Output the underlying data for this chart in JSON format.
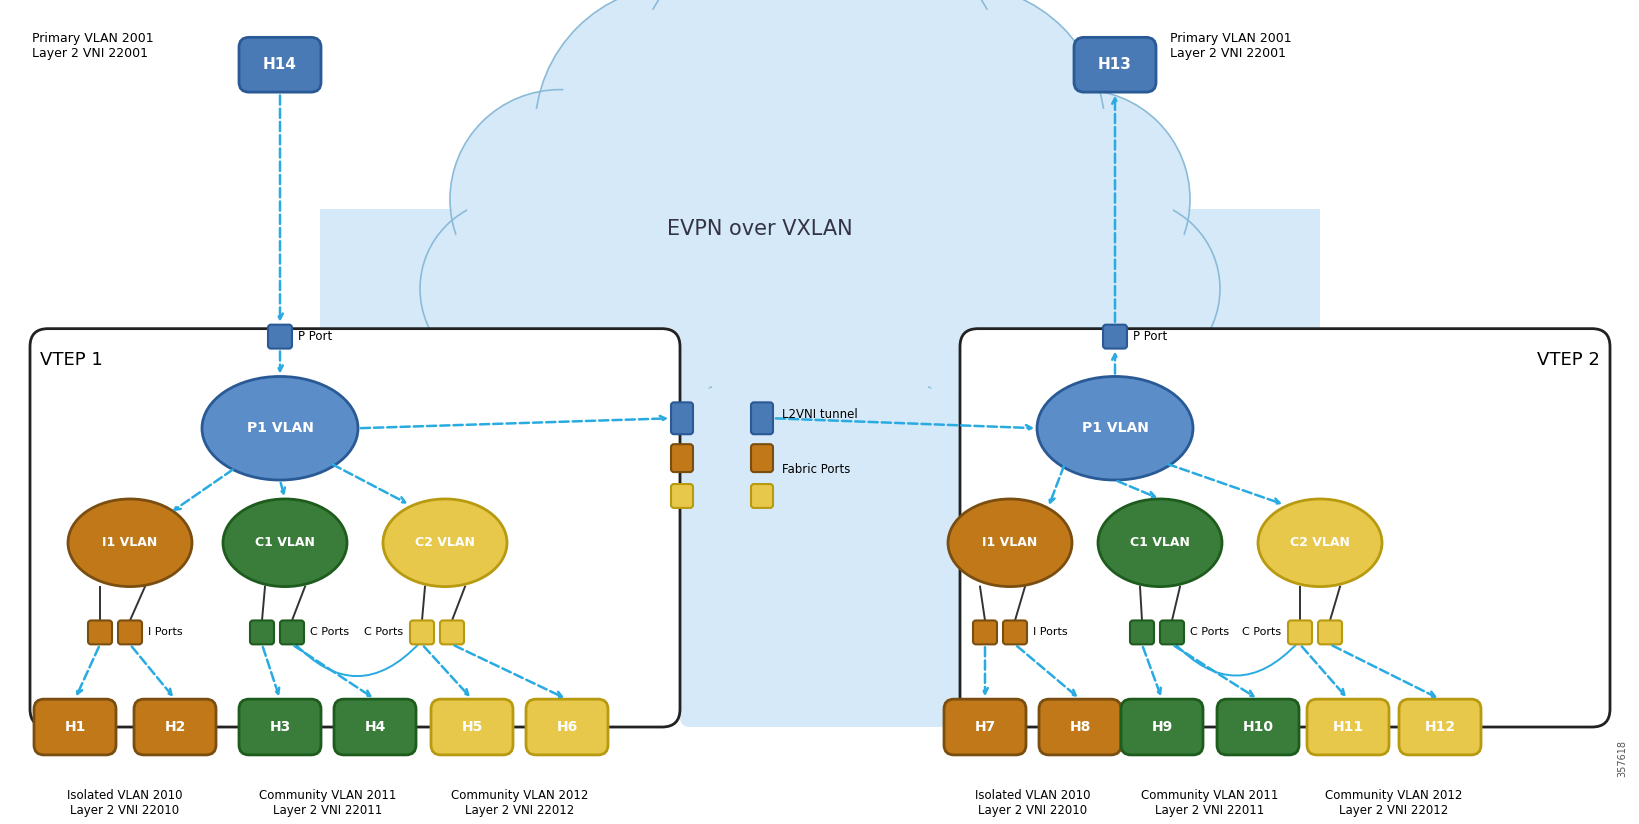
{
  "bg_color": "#ffffff",
  "cloud_color": "#d6e9f8",
  "cloud_edge_color": "#8bbbd8",
  "vtep_box_edge": "#222222",
  "p_vlan_color": "#5b8dc8",
  "p_vlan_edge": "#2a5a95",
  "i_vlan_color": "#c07818",
  "i_vlan_edge": "#7a4e10",
  "c1_vlan_color": "#3a7d3a",
  "c1_vlan_edge": "#1e5c1e",
  "c2_vlan_color": "#e8c84a",
  "c2_vlan_edge": "#b89a10",
  "host_blue_color": "#4a7ab5",
  "host_blue_edge": "#2a5a95",
  "host_orange_color": "#c07818",
  "host_orange_edge": "#7a4e10",
  "host_green_color": "#3a7d3a",
  "host_green_edge": "#1e5c1e",
  "host_yellow_color": "#e8c84a",
  "host_yellow_edge": "#b89a10",
  "port_blue_color": "#4a7ab5",
  "port_blue_edge": "#2a5a95",
  "port_orange_color": "#c07818",
  "port_orange_edge": "#7a4e10",
  "port_green_color": "#3a7d3a",
  "port_green_edge": "#1e5c1e",
  "port_yellow_color": "#e8c84a",
  "port_yellow_edge": "#b89a10",
  "arrow_color": "#29abe2",
  "line_color": "#333333",
  "vtep1_label": "VTEP 1",
  "vtep2_label": "VTEP 2",
  "cloud_label": "EVPN over VXLAN",
  "l2vni_label": "L2VNI tunnel",
  "fabric_label": "Fabric Ports",
  "p_port_label": "P Port",
  "i_ports_label": "I Ports",
  "c_ports_label1": "C Ports",
  "c_ports_label2": "C Ports",
  "p1_vlan_label": "P1 VLAN",
  "i1_vlan_label": "I1 VLAN",
  "c1_vlan_label": "C1 VLAN",
  "c2_vlan_label": "C2 VLAN",
  "h14_label": "H14",
  "h13_label": "H13",
  "h1_label": "H1",
  "h2_label": "H2",
  "h3_label": "H3",
  "h4_label": "H4",
  "h5_label": "H5",
  "h6_label": "H6",
  "h7_label": "H7",
  "h8_label": "H8",
  "h9_label": "H9",
  "h10_label": "H10",
  "h11_label": "H11",
  "h12_label": "H12",
  "vlan_info_left_top": "Primary VLAN 2001\nLayer 2 VNI 22001",
  "vlan_info_right_top": "Primary VLAN 2001\nLayer 2 VNI 22001",
  "vlan_info_left_h1h2": "Isolated VLAN 2010\nLayer 2 VNI 22010",
  "vlan_info_left_h3h4": "Community VLAN 2011\nLayer 2 VNI 22011",
  "vlan_info_left_h5h6": "Community VLAN 2012\nLayer 2 VNI 22012",
  "vlan_info_right_h7h8": "Isolated VLAN 2010\nLayer 2 VNI 22010",
  "vlan_info_right_h9h10": "Community VLAN 2011\nLayer 2 VNI 22011",
  "vlan_info_right_h11h12": "Community VLAN 2012\nLayer 2 VNI 22012",
  "cisco_label": "357618"
}
